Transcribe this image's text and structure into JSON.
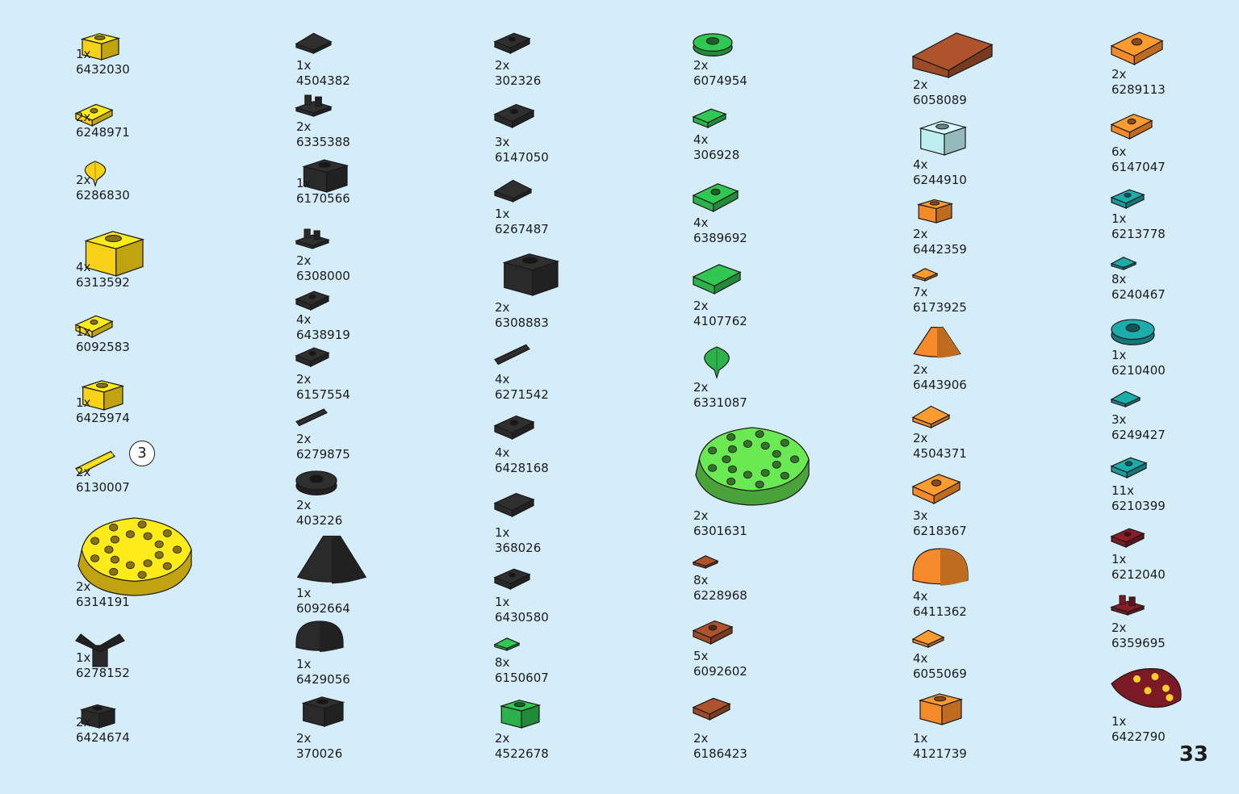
{
  "page_number": "33",
  "callout_step": "3",
  "colors": {
    "yellow": "#f7d117",
    "black": "#2a2a2a",
    "green": "#2bb24a",
    "bright-green": "#5fd04a",
    "brown": "#9c4a28",
    "trans-light-blue": "#bfeef0",
    "orange": "#f58a2a",
    "teal": "#1a9a9a",
    "dark-red": "#7b1a24"
  },
  "columns": [
    {
      "parts": [
        {
          "qty": "1x",
          "id": "6432030",
          "shape": "brick",
          "color": "yellow"
        },
        {
          "qty": "2x",
          "id": "6248971",
          "shape": "plate",
          "color": "yellow"
        },
        {
          "qty": "2x",
          "id": "6286830",
          "shape": "leaf",
          "color": "yellow"
        },
        {
          "qty": "4x",
          "id": "6313592",
          "shape": "brick",
          "color": "yellow"
        },
        {
          "qty": "1x",
          "id": "6092583",
          "shape": "plate",
          "color": "yellow"
        },
        {
          "qty": "1x",
          "id": "6425974",
          "shape": "brick",
          "color": "yellow"
        },
        {
          "qty": "2x",
          "id": "6130007",
          "shape": "bar",
          "color": "yellow"
        },
        {
          "qty": "2x",
          "id": "6314191",
          "shape": "bigplate",
          "color": "yellow"
        },
        {
          "qty": "1x",
          "id": "6278152",
          "shape": "hinge",
          "color": "black"
        },
        {
          "qty": "2x",
          "id": "6424674",
          "shape": "brick",
          "color": "black"
        }
      ]
    },
    {
      "parts": [
        {
          "qty": "1x",
          "id": "4504382",
          "shape": "slope",
          "color": "black"
        },
        {
          "qty": "2x",
          "id": "6335388",
          "shape": "clip",
          "color": "black"
        },
        {
          "qty": "1x",
          "id": "6170566",
          "shape": "brick",
          "color": "black"
        },
        {
          "qty": "2x",
          "id": "6308000",
          "shape": "clip",
          "color": "black"
        },
        {
          "qty": "4x",
          "id": "6438919",
          "shape": "plate",
          "color": "black"
        },
        {
          "qty": "2x",
          "id": "6157554",
          "shape": "plate",
          "color": "black"
        },
        {
          "qty": "2x",
          "id": "6279875",
          "shape": "bar",
          "color": "black"
        },
        {
          "qty": "2x",
          "id": "403226",
          "shape": "round",
          "color": "black"
        },
        {
          "qty": "1x",
          "id": "6092664",
          "shape": "cone",
          "color": "black"
        },
        {
          "qty": "1x",
          "id": "6429056",
          "shape": "dome",
          "color": "black"
        },
        {
          "qty": "2x",
          "id": "370026",
          "shape": "brick",
          "color": "black"
        }
      ]
    },
    {
      "parts": [
        {
          "qty": "2x",
          "id": "302326",
          "shape": "plate",
          "color": "black"
        },
        {
          "qty": "3x",
          "id": "6147050",
          "shape": "plate",
          "color": "black"
        },
        {
          "qty": "1x",
          "id": "6267487",
          "shape": "slope",
          "color": "black"
        },
        {
          "qty": "2x",
          "id": "6308883",
          "shape": "brick",
          "color": "black"
        },
        {
          "qty": "4x",
          "id": "6271542",
          "shape": "bar",
          "color": "black"
        },
        {
          "qty": "4x",
          "id": "6428168",
          "shape": "plate",
          "color": "black"
        },
        {
          "qty": "1x",
          "id": "368026",
          "shape": "tile",
          "color": "black"
        },
        {
          "qty": "1x",
          "id": "6430580",
          "shape": "plate",
          "color": "black"
        },
        {
          "qty": "8x",
          "id": "6150607",
          "shape": "slope",
          "color": "green"
        },
        {
          "qty": "2x",
          "id": "4522678",
          "shape": "brick",
          "color": "green"
        }
      ]
    },
    {
      "parts": [
        {
          "qty": "2x",
          "id": "6074954",
          "shape": "round",
          "color": "green"
        },
        {
          "qty": "4x",
          "id": "306928",
          "shape": "tile",
          "color": "green"
        },
        {
          "qty": "4x",
          "id": "6389692",
          "shape": "plate",
          "color": "green"
        },
        {
          "qty": "2x",
          "id": "4107762",
          "shape": "tile",
          "color": "green"
        },
        {
          "qty": "2x",
          "id": "6331087",
          "shape": "leaf",
          "color": "green"
        },
        {
          "qty": "2x",
          "id": "6301631",
          "shape": "bigplate",
          "color": "bright-green"
        },
        {
          "qty": "8x",
          "id": "6228968",
          "shape": "slope",
          "color": "brown"
        },
        {
          "qty": "5x",
          "id": "6092602",
          "shape": "plate",
          "color": "brown"
        },
        {
          "qty": "2x",
          "id": "6186423",
          "shape": "tile",
          "color": "brown"
        }
      ]
    },
    {
      "parts": [
        {
          "qty": "2x",
          "id": "6058089",
          "shape": "longtile",
          "color": "brown"
        },
        {
          "qty": "4x",
          "id": "6244910",
          "shape": "brick",
          "color": "trans-light-blue"
        },
        {
          "qty": "2x",
          "id": "6442359",
          "shape": "brick",
          "color": "orange"
        },
        {
          "qty": "7x",
          "id": "6173925",
          "shape": "slope",
          "color": "orange"
        },
        {
          "qty": "2x",
          "id": "6443906",
          "shape": "cone",
          "color": "orange"
        },
        {
          "qty": "2x",
          "id": "4504371",
          "shape": "slope",
          "color": "orange"
        },
        {
          "qty": "3x",
          "id": "6218367",
          "shape": "plate",
          "color": "orange"
        },
        {
          "qty": "4x",
          "id": "6411362",
          "shape": "dome",
          "color": "orange"
        },
        {
          "qty": "4x",
          "id": "6055069",
          "shape": "slope",
          "color": "orange"
        },
        {
          "qty": "1x",
          "id": "4121739",
          "shape": "brick",
          "color": "orange"
        }
      ]
    },
    {
      "parts": [
        {
          "qty": "2x",
          "id": "6289113",
          "shape": "plate",
          "color": "orange"
        },
        {
          "qty": "6x",
          "id": "6147047",
          "shape": "plate",
          "color": "orange"
        },
        {
          "qty": "1x",
          "id": "6213778",
          "shape": "plate",
          "color": "teal"
        },
        {
          "qty": "8x",
          "id": "6240467",
          "shape": "slope",
          "color": "teal"
        },
        {
          "qty": "1x",
          "id": "6210400",
          "shape": "round",
          "color": "teal"
        },
        {
          "qty": "3x",
          "id": "6249427",
          "shape": "slope",
          "color": "teal"
        },
        {
          "qty": "11x",
          "id": "6210399",
          "shape": "plate",
          "color": "teal"
        },
        {
          "qty": "1x",
          "id": "6212040",
          "shape": "plate",
          "color": "dark-red"
        },
        {
          "qty": "2x",
          "id": "6359695",
          "shape": "clip",
          "color": "dark-red"
        },
        {
          "qty": "1x",
          "id": "6422790",
          "shape": "shell",
          "color": "dark-red"
        }
      ]
    }
  ]
}
